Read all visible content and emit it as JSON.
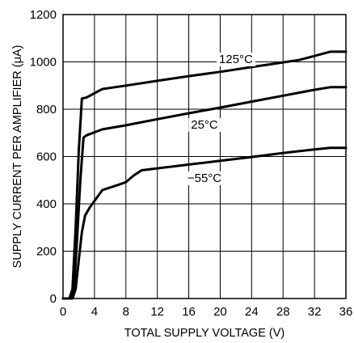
{
  "chart_data": {
    "type": "line",
    "title": "",
    "xlabel": "TOTAL SUPPLY VOLTAGE (V)",
    "ylabel": "SUPPLY CURRENT PER AMPLIFIER (μA)",
    "xlim": [
      0,
      36
    ],
    "ylim": [
      0,
      1200
    ],
    "x_ticks": [
      "0",
      "4",
      "8",
      "12",
      "16",
      "20",
      "24",
      "28",
      "32",
      "36"
    ],
    "y_ticks": [
      "0",
      "200",
      "400",
      "600",
      "800",
      "1000",
      "1200"
    ],
    "grid": true,
    "series": [
      {
        "name": "125°C",
        "x": [
          0,
          0.8,
          1.2,
          1.6,
          2.0,
          2.4,
          3.0,
          5.0,
          8.0,
          12,
          16,
          20,
          24,
          28,
          30,
          32,
          34,
          36
        ],
        "y": [
          0,
          0,
          40,
          300,
          620,
          845,
          850,
          885,
          900,
          920,
          940,
          958,
          978,
          998,
          1008,
          1025,
          1043,
          1043
        ]
      },
      {
        "name": "25°C",
        "x": [
          0,
          1.0,
          1.4,
          1.8,
          2.2,
          2.6,
          3.0,
          5.0,
          8.0,
          12,
          16,
          20,
          24,
          28,
          32,
          34,
          36
        ],
        "y": [
          0,
          0,
          40,
          260,
          500,
          680,
          690,
          715,
          732,
          758,
          783,
          807,
          832,
          857,
          882,
          893,
          893
        ]
      },
      {
        "name": "−55°C",
        "x": [
          0,
          1.2,
          1.6,
          2.0,
          2.4,
          2.8,
          3.4,
          5.0,
          7.0,
          8.0,
          9.0,
          10.0,
          12,
          16,
          20,
          24,
          28,
          32,
          34,
          36
        ],
        "y": [
          0,
          0,
          40,
          160,
          280,
          350,
          385,
          458,
          480,
          492,
          520,
          542,
          550,
          566,
          582,
          598,
          615,
          630,
          637,
          637
        ]
      }
    ],
    "annotations": [
      {
        "text": "125°C",
        "series": "125°C",
        "x": 22,
        "y": 1012
      },
      {
        "text": "25°C",
        "series": "25°C",
        "x": 18,
        "y": 735
      },
      {
        "text": "−55°C",
        "series": "−55°C",
        "x": 18,
        "y": 510
      }
    ]
  }
}
